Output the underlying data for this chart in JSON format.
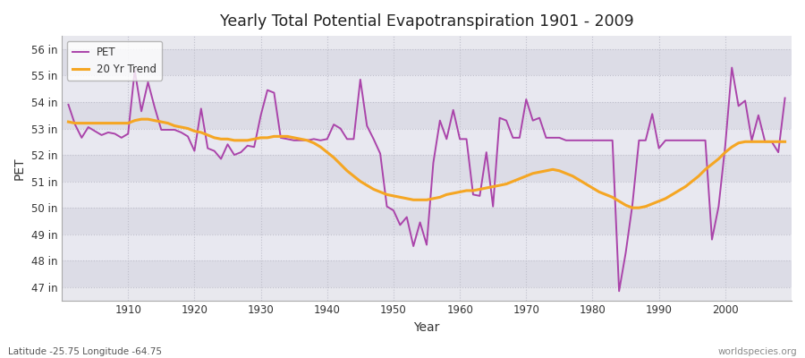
{
  "title": "Yearly Total Potential Evapotranspiration 1901 - 2009",
  "xlabel": "Year",
  "ylabel": "PET",
  "footnote_left": "Latitude -25.75 Longitude -64.75",
  "footnote_right": "worldspecies.org",
  "pet_color": "#aa44aa",
  "trend_color": "#f5a623",
  "bg_color": "#f0f0f0",
  "plot_bg_color": "#e8e8e8",
  "band_light": "#e0e0e8",
  "band_dark": "#d0d0dc",
  "grid_color": "#bbbbcc",
  "ylim": [
    46.5,
    56.5
  ],
  "yticks": [
    47,
    48,
    49,
    50,
    51,
    52,
    53,
    54,
    55,
    56
  ],
  "ytick_labels": [
    "47 in",
    "48 in",
    "49 in",
    "50 in",
    "51 in",
    "52 in",
    "53 in",
    "54 in",
    "55 in",
    "56 in"
  ],
  "xticks": [
    1910,
    1920,
    1930,
    1940,
    1950,
    1960,
    1970,
    1980,
    1990,
    2000
  ],
  "years": [
    1901,
    1902,
    1903,
    1904,
    1905,
    1906,
    1907,
    1908,
    1909,
    1910,
    1911,
    1912,
    1913,
    1914,
    1915,
    1916,
    1917,
    1918,
    1919,
    1920,
    1921,
    1922,
    1923,
    1924,
    1925,
    1926,
    1927,
    1928,
    1929,
    1930,
    1931,
    1932,
    1933,
    1934,
    1935,
    1936,
    1937,
    1938,
    1939,
    1940,
    1941,
    1942,
    1943,
    1944,
    1945,
    1946,
    1947,
    1948,
    1949,
    1950,
    1951,
    1952,
    1953,
    1954,
    1955,
    1956,
    1957,
    1958,
    1959,
    1960,
    1961,
    1962,
    1963,
    1964,
    1965,
    1966,
    1967,
    1968,
    1969,
    1970,
    1971,
    1972,
    1973,
    1974,
    1975,
    1976,
    1977,
    1978,
    1979,
    1980,
    1981,
    1982,
    1983,
    1984,
    1985,
    1986,
    1987,
    1988,
    1989,
    1990,
    1991,
    1992,
    1993,
    1994,
    1995,
    1996,
    1997,
    1998,
    1999,
    2000,
    2001,
    2002,
    2003,
    2004,
    2005,
    2006,
    2007,
    2008,
    2009
  ],
  "pet": [
    53.9,
    53.15,
    52.65,
    53.05,
    52.9,
    52.75,
    52.85,
    52.8,
    52.65,
    52.8,
    55.2,
    53.65,
    54.75,
    53.8,
    52.95,
    52.95,
    52.95,
    52.85,
    52.7,
    52.15,
    53.75,
    52.25,
    52.15,
    51.85,
    52.4,
    52.0,
    52.1,
    52.35,
    52.3,
    53.5,
    54.45,
    54.35,
    52.65,
    52.6,
    52.55,
    52.55,
    52.55,
    52.6,
    52.55,
    52.6,
    53.15,
    53.0,
    52.6,
    52.6,
    54.85,
    53.1,
    52.6,
    52.05,
    50.05,
    49.9,
    49.35,
    49.65,
    48.55,
    49.45,
    48.6,
    51.7,
    53.3,
    52.6,
    53.7,
    52.6,
    52.6,
    50.5,
    50.45,
    52.1,
    50.05,
    53.4,
    53.3,
    52.65,
    52.65,
    54.1,
    53.3,
    53.4,
    52.65,
    52.65,
    52.65,
    52.55,
    52.55,
    52.55,
    52.55,
    52.55,
    52.55,
    52.55,
    52.55,
    46.85,
    48.3,
    50.1,
    52.55,
    52.55,
    53.55,
    52.25,
    52.55,
    52.55,
    52.55,
    52.55,
    52.55,
    52.55,
    52.55,
    48.8,
    50.05,
    52.35,
    55.3,
    53.85,
    54.05,
    52.55,
    53.5,
    52.5,
    52.5,
    52.1,
    54.15
  ],
  "trend": [
    53.25,
    53.2,
    53.2,
    53.2,
    53.2,
    53.2,
    53.2,
    53.2,
    53.2,
    53.2,
    53.3,
    53.35,
    53.35,
    53.3,
    53.25,
    53.2,
    53.1,
    53.05,
    53.0,
    52.9,
    52.85,
    52.75,
    52.65,
    52.6,
    52.6,
    52.55,
    52.55,
    52.55,
    52.6,
    52.65,
    52.65,
    52.7,
    52.7,
    52.7,
    52.65,
    52.6,
    52.55,
    52.45,
    52.3,
    52.1,
    51.9,
    51.65,
    51.4,
    51.2,
    51.0,
    50.85,
    50.7,
    50.6,
    50.5,
    50.45,
    50.4,
    50.35,
    50.3,
    50.3,
    50.3,
    50.35,
    50.4,
    50.5,
    50.55,
    50.6,
    50.65,
    50.65,
    50.7,
    50.75,
    50.8,
    50.85,
    50.9,
    51.0,
    51.1,
    51.2,
    51.3,
    51.35,
    51.4,
    51.45,
    51.4,
    51.3,
    51.2,
    51.05,
    50.9,
    50.75,
    50.6,
    50.5,
    50.4,
    50.25,
    50.1,
    50.0,
    50.0,
    50.05,
    50.15,
    50.25,
    50.35,
    50.5,
    50.65,
    50.8,
    51.0,
    51.2,
    51.45,
    51.65,
    51.85,
    52.1,
    52.3,
    52.45,
    52.5,
    52.5,
    52.5,
    52.5,
    52.5,
    52.5,
    52.5
  ]
}
